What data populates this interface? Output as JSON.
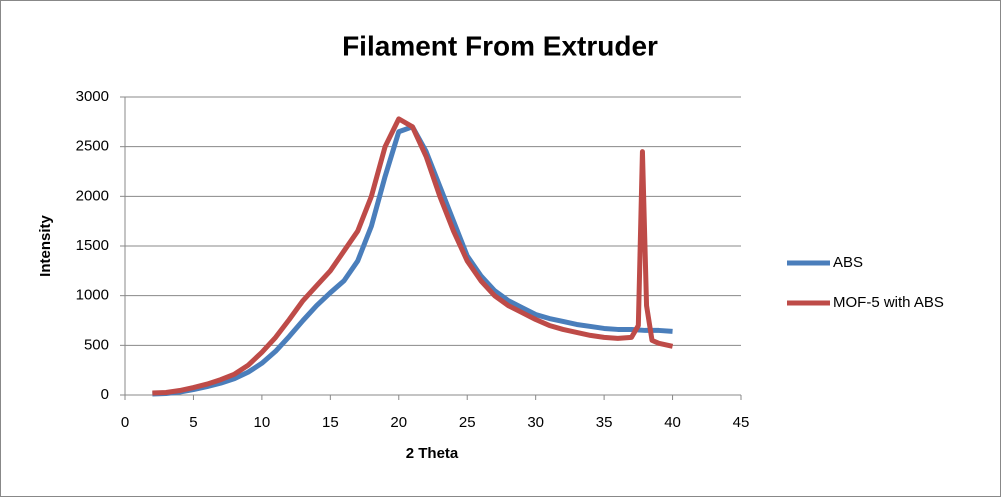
{
  "chart_data": {
    "type": "line",
    "title": "Filament From Extruder",
    "x_label": "2 Theta",
    "y_label": "Intensity",
    "xlim": [
      0,
      45
    ],
    "xticks": [
      0,
      5,
      10,
      15,
      20,
      25,
      30,
      35,
      40,
      45
    ],
    "ylim": [
      0,
      3000
    ],
    "yticks": [
      0,
      500,
      1000,
      1500,
      2000,
      2500,
      3000
    ],
    "grid": true,
    "legend": "right",
    "series": [
      {
        "name": "ABS",
        "color": "#4a7ebb",
        "x": [
          2,
          3,
          4,
          5,
          6,
          7,
          8,
          9,
          10,
          11,
          12,
          13,
          14,
          15,
          16,
          17,
          18,
          19,
          20,
          21,
          22,
          23,
          24,
          25,
          26,
          27,
          28,
          29,
          30,
          31,
          32,
          33,
          34,
          35,
          36,
          37,
          38,
          39,
          40
        ],
        "values": [
          10,
          15,
          30,
          55,
          85,
          120,
          165,
          230,
          320,
          440,
          590,
          750,
          900,
          1030,
          1150,
          1350,
          1700,
          2200,
          2650,
          2700,
          2450,
          2100,
          1750,
          1400,
          1200,
          1050,
          950,
          880,
          810,
          770,
          740,
          710,
          690,
          670,
          660,
          660,
          650,
          650,
          640
        ]
      },
      {
        "name": "MOF-5 with ABS",
        "color": "#be4b48",
        "x": [
          2,
          3,
          4,
          5,
          6,
          7,
          8,
          9,
          10,
          11,
          12,
          13,
          14,
          15,
          16,
          17,
          18,
          19,
          20,
          21,
          22,
          23,
          24,
          25,
          26,
          27,
          28,
          29,
          30,
          31,
          32,
          33,
          34,
          35,
          36,
          37,
          37.5,
          37.8,
          38.1,
          38.5,
          39,
          40
        ],
        "values": [
          20,
          25,
          45,
          75,
          110,
          155,
          210,
          300,
          430,
          580,
          760,
          950,
          1100,
          1250,
          1450,
          1650,
          2000,
          2500,
          2780,
          2700,
          2400,
          2000,
          1650,
          1350,
          1150,
          1000,
          900,
          830,
          760,
          700,
          660,
          630,
          600,
          580,
          570,
          580,
          700,
          2450,
          900,
          550,
          520,
          490
        ]
      }
    ]
  }
}
